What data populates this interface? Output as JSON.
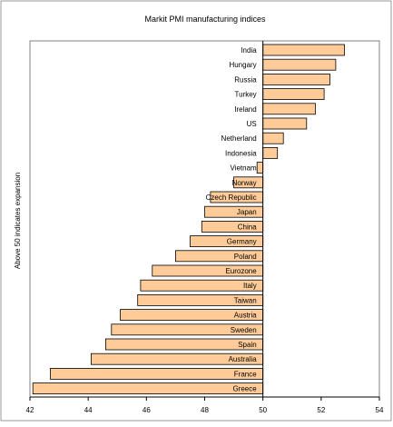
{
  "chart_data": {
    "type": "bar",
    "orientation": "horizontal",
    "title": "Markit PMI manufacturing indices",
    "ylabel": "Above 50 indicates expansion",
    "xlabel": "",
    "xlim": [
      42,
      54
    ],
    "x_ticks": [
      "42",
      "44",
      "46",
      "48",
      "50",
      "52",
      "54"
    ],
    "baseline": 50,
    "grid": false,
    "legend": "none",
    "bar_fill": "#ffcc99",
    "bar_stroke": "#000000",
    "categories": [
      "India",
      "Hungary",
      "Russia",
      "Turkey",
      "Ireland",
      "US",
      "Netherland",
      "Indonesia",
      "Vietnam",
      "Norway",
      "Czech Republic",
      "Japan",
      "China",
      "Germany",
      "Poland",
      "Eurozone",
      "Italy",
      "Taiwan",
      "Austria",
      "Sweden",
      "Spain",
      "Australia",
      "France",
      "Greece"
    ],
    "values": [
      52.8,
      52.5,
      52.3,
      52.1,
      51.8,
      51.5,
      50.7,
      50.5,
      49.8,
      49.0,
      48.2,
      48.0,
      47.9,
      47.5,
      47.0,
      46.2,
      45.8,
      45.7,
      45.1,
      44.8,
      44.6,
      44.1,
      42.7,
      42.1
    ]
  }
}
